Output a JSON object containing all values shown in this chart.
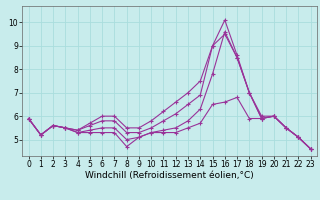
{
  "title": "",
  "xlabel": "Windchill (Refroidissement éolien,°C)",
  "background_color": "#c8ecec",
  "line_color": "#993399",
  "xlim": [
    -0.5,
    23.5
  ],
  "ylim": [
    4.3,
    10.7
  ],
  "yticks": [
    5,
    6,
    7,
    8,
    9,
    10
  ],
  "xticks": [
    0,
    1,
    2,
    3,
    4,
    5,
    6,
    7,
    8,
    9,
    10,
    11,
    12,
    13,
    14,
    15,
    16,
    17,
    18,
    19,
    20,
    21,
    22,
    23
  ],
  "series": [
    [
      5.9,
      5.2,
      5.6,
      5.5,
      5.3,
      5.3,
      5.3,
      5.3,
      4.7,
      5.1,
      5.3,
      5.3,
      5.3,
      5.5,
      5.7,
      6.5,
      6.6,
      6.8,
      5.9,
      5.9,
      6.0,
      5.5,
      5.1,
      4.6
    ],
    [
      5.9,
      5.2,
      5.6,
      5.5,
      5.3,
      5.4,
      5.5,
      5.5,
      5.0,
      5.1,
      5.3,
      5.4,
      5.5,
      5.8,
      6.3,
      7.8,
      9.6,
      8.5,
      7.0,
      6.0,
      6.0,
      5.5,
      5.1,
      4.6
    ],
    [
      5.9,
      5.2,
      5.6,
      5.5,
      5.4,
      5.6,
      5.8,
      5.8,
      5.3,
      5.3,
      5.5,
      5.8,
      6.1,
      6.5,
      6.9,
      9.0,
      9.5,
      8.5,
      7.0,
      5.9,
      6.0,
      5.5,
      5.1,
      4.6
    ],
    [
      5.9,
      5.2,
      5.6,
      5.5,
      5.4,
      5.7,
      6.0,
      6.0,
      5.5,
      5.5,
      5.8,
      6.2,
      6.6,
      7.0,
      7.5,
      9.0,
      10.1,
      8.6,
      7.0,
      5.9,
      6.0,
      5.5,
      5.1,
      4.6
    ]
  ],
  "grid_color": "#aadddd",
  "tick_fontsize": 5.5,
  "xlabel_fontsize": 6.5
}
